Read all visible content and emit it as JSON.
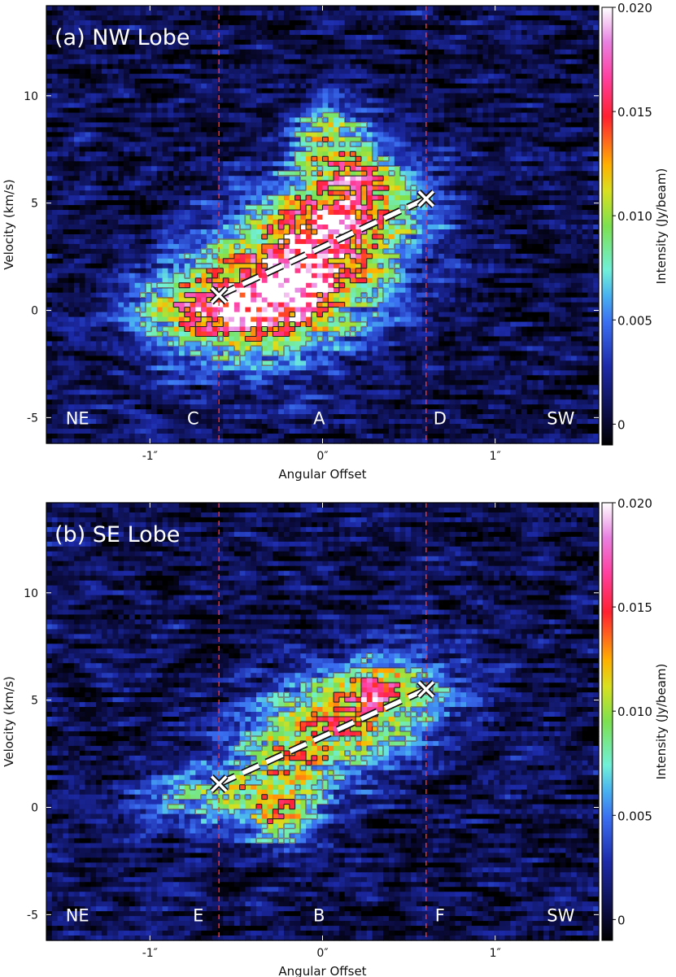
{
  "chart_data": [
    {
      "type": "heatmap",
      "title": "(a) NW Lobe",
      "xlabel": "Angular Offset",
      "ylabel": "Velocity (km/s)",
      "xlim": [
        -1.6,
        1.6
      ],
      "ylim": [
        -6.2,
        14.2
      ],
      "x_ticks": [
        {
          "value": -1,
          "label": "-1″"
        },
        {
          "value": 0,
          "label": "0″"
        },
        {
          "value": 1,
          "label": "1″"
        }
      ],
      "y_ticks": [
        {
          "value": -5,
          "label": "-5"
        },
        {
          "value": 0,
          "label": "0"
        },
        {
          "value": 5,
          "label": "5"
        },
        {
          "value": 10,
          "label": "10"
        }
      ],
      "colorbar": {
        "label": "Intensity (Jy/beam)",
        "range": [
          -0.001,
          0.02
        ],
        "ticks": [
          {
            "value": 0,
            "label": "0"
          },
          {
            "value": 0.005,
            "label": "0.005"
          },
          {
            "value": 0.01,
            "label": "0.010"
          },
          {
            "value": 0.015,
            "label": "0.015"
          },
          {
            "value": 0.02,
            "label": "0.020"
          }
        ]
      },
      "vertical_lines": [
        -0.6,
        0.6
      ],
      "region_labels": [
        {
          "text": "NE",
          "x": -1.42,
          "v": -5.0
        },
        {
          "text": "C",
          "x": -0.75,
          "v": -5.0
        },
        {
          "text": "A",
          "x": -0.02,
          "v": -5.0
        },
        {
          "text": "D",
          "x": 0.68,
          "v": -5.0
        },
        {
          "text": "SW",
          "x": 1.38,
          "v": -5.0
        }
      ],
      "dashed_line": [
        {
          "x": -0.6,
          "v": 0.7
        },
        {
          "x": 0.6,
          "v": 5.2
        }
      ],
      "emission_blobs": [
        {
          "x": -0.22,
          "v": 1.2,
          "sx": 0.42,
          "sv": 2.2,
          "amp": 0.016,
          "rot": 0.35
        },
        {
          "x": -0.18,
          "v": 0.7,
          "sx": 0.12,
          "sv": 0.7,
          "amp": 0.008,
          "rot": 0
        },
        {
          "x": 0.12,
          "v": 4.6,
          "sx": 0.3,
          "sv": 1.6,
          "amp": 0.011,
          "rot": 0.3
        },
        {
          "x": 0.04,
          "v": 8.0,
          "sx": 0.15,
          "sv": 1.3,
          "amp": 0.008,
          "rot": 0
        },
        {
          "x": -0.72,
          "v": 0.1,
          "sx": 0.28,
          "sv": 1.0,
          "amp": 0.008,
          "rot": 0
        },
        {
          "x": 0.2,
          "v": 6.5,
          "sx": 0.12,
          "sv": 0.6,
          "amp": 0.005,
          "rot": 0
        }
      ]
    },
    {
      "type": "heatmap",
      "title": "(b) SE Lobe",
      "xlabel": "Angular Offset",
      "ylabel": "Velocity (km/s)",
      "xlim": [
        -1.6,
        1.6
      ],
      "ylim": [
        -6.2,
        14.2
      ],
      "x_ticks": [
        {
          "value": -1,
          "label": "-1″"
        },
        {
          "value": 0,
          "label": "0″"
        },
        {
          "value": 1,
          "label": "1″"
        }
      ],
      "y_ticks": [
        {
          "value": -5,
          "label": "-5"
        },
        {
          "value": 0,
          "label": "0"
        },
        {
          "value": 5,
          "label": "5"
        },
        {
          "value": 10,
          "label": "10"
        }
      ],
      "colorbar": {
        "label": "Intensity (Jy/beam)",
        "range": [
          -0.001,
          0.02
        ],
        "ticks": [
          {
            "value": 0,
            "label": "0"
          },
          {
            "value": 0.005,
            "label": "0.005"
          },
          {
            "value": 0.01,
            "label": "0.010"
          },
          {
            "value": 0.015,
            "label": "0.015"
          },
          {
            "value": 0.02,
            "label": "0.020"
          }
        ]
      },
      "vertical_lines": [
        -0.6,
        0.6
      ],
      "region_labels": [
        {
          "text": "NE",
          "x": -1.42,
          "v": -5.0
        },
        {
          "text": "E",
          "x": -0.72,
          "v": -5.0
        },
        {
          "text": "B",
          "x": -0.02,
          "v": -5.0
        },
        {
          "text": "F",
          "x": 0.68,
          "v": -5.0
        },
        {
          "text": "SW",
          "x": 1.38,
          "v": -5.0
        }
      ],
      "dashed_line": [
        {
          "x": -0.6,
          "v": 1.1
        },
        {
          "x": 0.6,
          "v": 5.5
        }
      ],
      "emission_blobs": [
        {
          "x": 0.28,
          "v": 4.6,
          "sx": 0.32,
          "sv": 1.6,
          "amp": 0.011,
          "rot": 0.3
        },
        {
          "x": -0.2,
          "v": 2.3,
          "sx": 0.25,
          "sv": 2.0,
          "amp": 0.008,
          "rot": 0.4
        },
        {
          "x": -0.25,
          "v": -0.5,
          "sx": 0.12,
          "sv": 0.8,
          "amp": 0.008,
          "rot": 0
        },
        {
          "x": -0.68,
          "v": 0.5,
          "sx": 0.26,
          "sv": 1.0,
          "amp": 0.007,
          "rot": 0
        },
        {
          "x": 0.32,
          "v": 5.6,
          "sx": 0.12,
          "sv": 0.5,
          "amp": 0.006,
          "rot": 0
        }
      ]
    }
  ]
}
